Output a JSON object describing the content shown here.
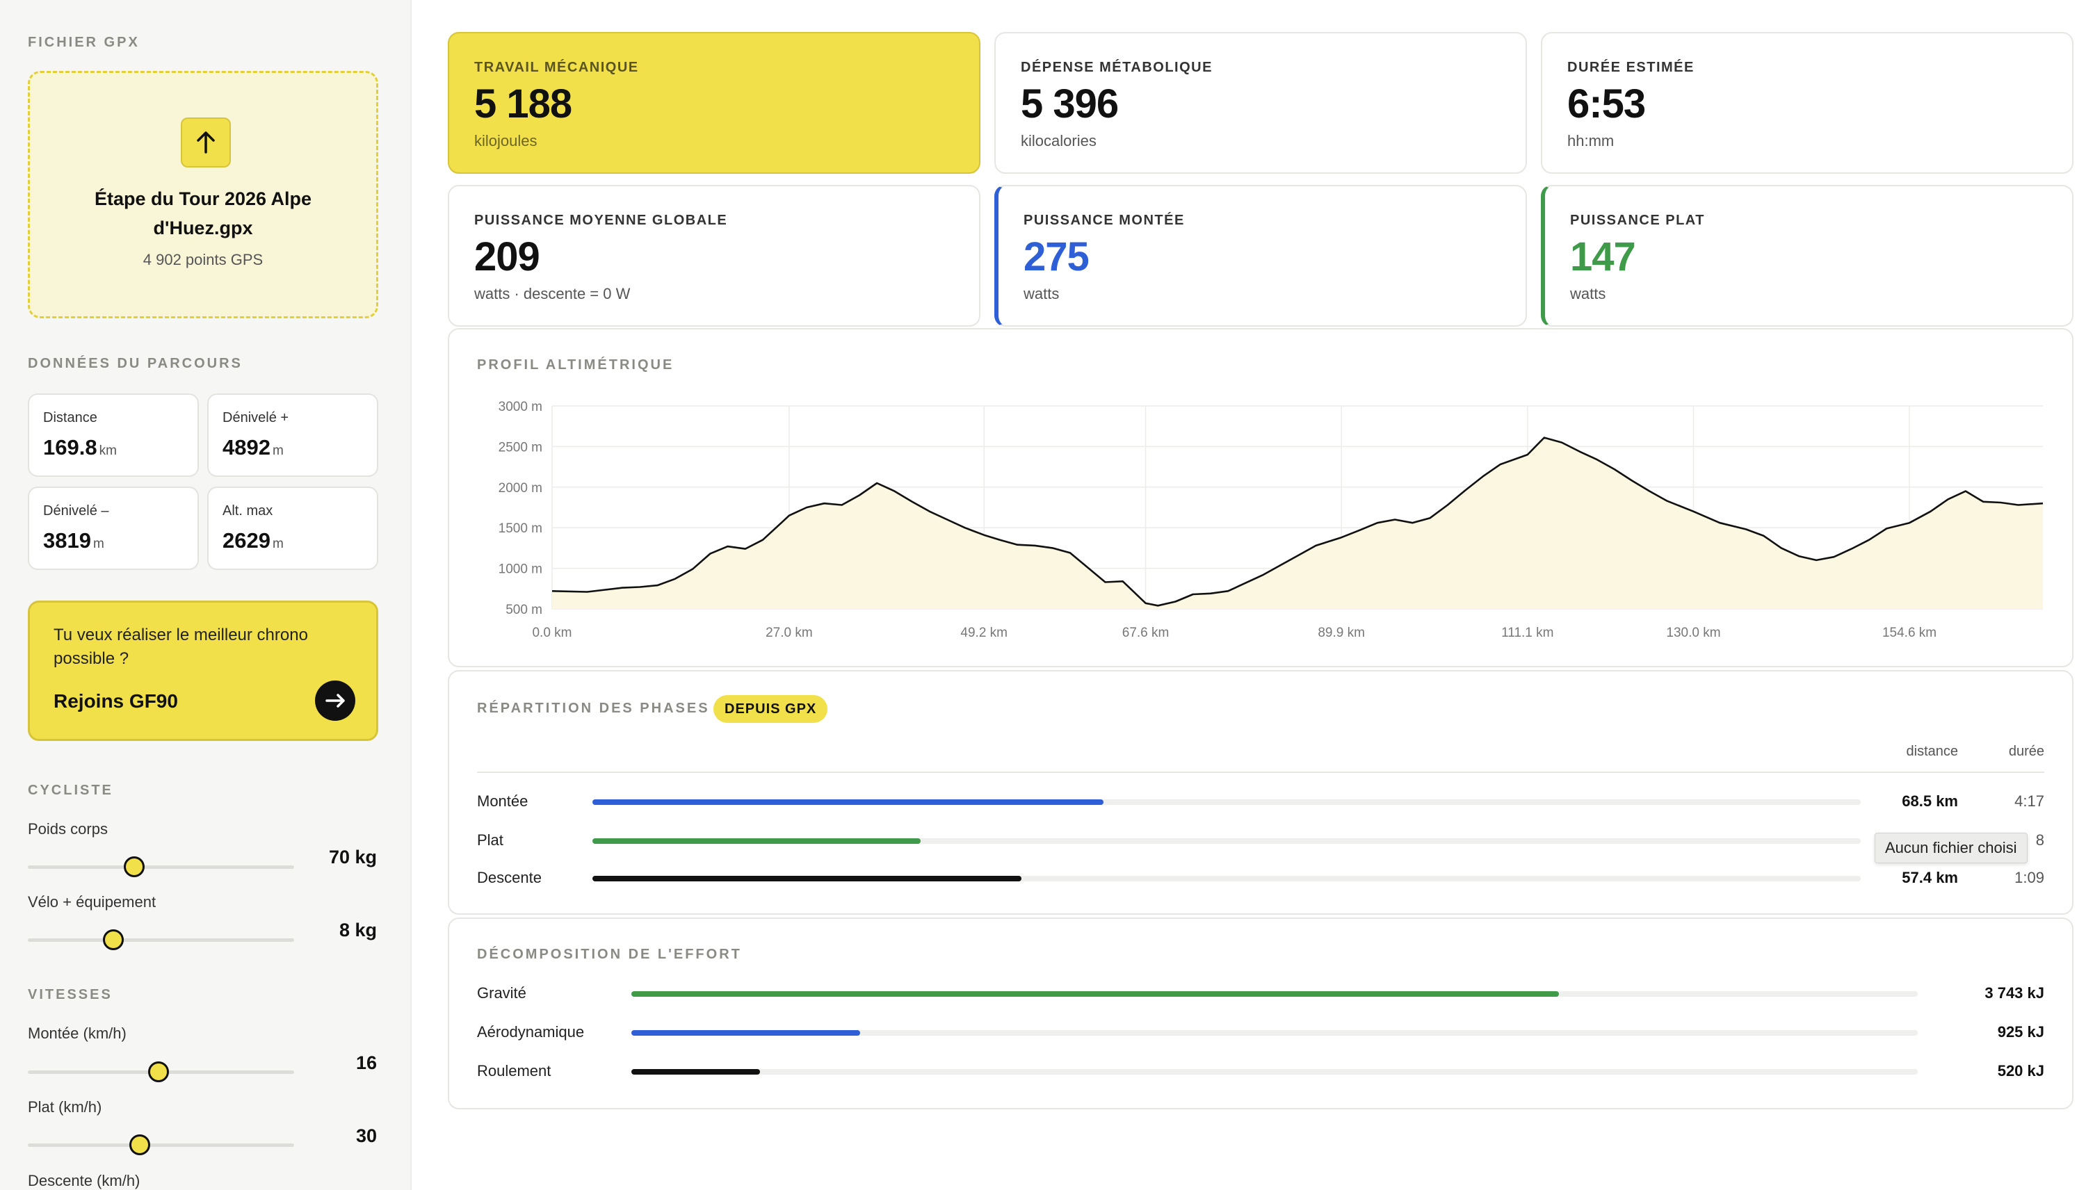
{
  "sidebar": {
    "gpx_section_title": "FICHIER GPX",
    "file_name": "Étape du Tour 2026 Alpe d'Huez.gpx",
    "gps_points": "4 902 points GPS",
    "route_section_title": "DONNÉES DU PARCOURS",
    "stats": [
      {
        "label": "Distance",
        "value": "169.8",
        "unit": "km"
      },
      {
        "label": "Dénivelé +",
        "value": "4892",
        "unit": "m"
      },
      {
        "label": "Dénivelé –",
        "value": "3819",
        "unit": "m"
      },
      {
        "label": "Alt. max",
        "value": "2629",
        "unit": "m"
      }
    ],
    "cta": {
      "text": "Tu veux réaliser le meilleur chrono possible ?",
      "action": "Rejoins GF90"
    },
    "rider_section_title": "CYCLISTE",
    "rider_sliders": [
      {
        "label": "Poids corps",
        "value": "70 kg",
        "fraction": 0.4
      },
      {
        "label": "Vélo + équipement",
        "value": "8 kg",
        "fraction": 0.32
      }
    ],
    "speed_section_title": "VITESSES",
    "speed_sliders": [
      {
        "label": "Montée (km/h)",
        "value": "16",
        "fraction": 0.49
      },
      {
        "label": "Plat (km/h)",
        "value": "30",
        "fraction": 0.42
      },
      {
        "label": "Descente (km/h)",
        "value": ""
      }
    ]
  },
  "metrics": [
    {
      "label": "TRAVAIL MÉCANIQUE",
      "value": "5 188",
      "sub": "kilojoules"
    },
    {
      "label": "DÉPENSE MÉTABOLIQUE",
      "value": "5 396",
      "sub": "kilocalories"
    },
    {
      "label": "DURÉE ESTIMÉE",
      "value": "6:53",
      "sub": "hh:mm"
    },
    {
      "label": "PUISSANCE MOYENNE GLOBALE",
      "value": "209",
      "sub": "watts · descente = 0 W"
    },
    {
      "label": "PUISSANCE MONTÉE",
      "value": "275",
      "sub": "watts"
    },
    {
      "label": "PUISSANCE PLAT",
      "value": "147",
      "sub": "watts"
    }
  ],
  "colors": {
    "accent_yellow": "#f2e04a",
    "climb_blue": "#2f5fd6",
    "flat_green": "#3f9a4a",
    "descent_black": "#111111"
  },
  "profile_title": "PROFIL ALTIMÉTRIQUE",
  "chart_data": {
    "type": "area",
    "title": "PROFIL ALTIMÉTRIQUE",
    "y_ticks": [
      "3000 m",
      "2500 m",
      "2000 m",
      "1500 m",
      "1000 m",
      "500 m"
    ],
    "x_ticks": [
      "0.0 km",
      "27.0 km",
      "49.2 km",
      "67.6 km",
      "89.9 km",
      "111.1 km",
      "130.0 km",
      "154.6 km"
    ],
    "ylim": [
      500,
      3000
    ],
    "xlim": [
      0,
      169.8
    ],
    "x": [
      0,
      4,
      8,
      10,
      12,
      14,
      16,
      18,
      20,
      22,
      24,
      26,
      27,
      29,
      31,
      33,
      35,
      37,
      39,
      41,
      43,
      45,
      47,
      49.2,
      51,
      53,
      55,
      57,
      59,
      61,
      63,
      65,
      67.6,
      69,
      71,
      73,
      75,
      77,
      79,
      81,
      83,
      85,
      87,
      89.9,
      92,
      94,
      96,
      98,
      100,
      102,
      104,
      106,
      108,
      111.1,
      113,
      115,
      117,
      119,
      121,
      123,
      125,
      127,
      130,
      133,
      136,
      138,
      140,
      142,
      144,
      146,
      148,
      150,
      152,
      154.6,
      157,
      159,
      161,
      163,
      165,
      167,
      169.8
    ],
    "y": [
      720,
      710,
      760,
      770,
      790,
      870,
      990,
      1180,
      1270,
      1240,
      1350,
      1550,
      1650,
      1750,
      1800,
      1780,
      1900,
      2050,
      1950,
      1820,
      1700,
      1600,
      1500,
      1410,
      1350,
      1290,
      1280,
      1250,
      1190,
      1010,
      830,
      840,
      570,
      540,
      590,
      680,
      690,
      720,
      820,
      920,
      1040,
      1160,
      1280,
      1380,
      1470,
      1560,
      1600,
      1560,
      1620,
      1780,
      1960,
      2130,
      2280,
      2400,
      2610,
      2550,
      2440,
      2340,
      2220,
      2080,
      1950,
      1830,
      1700,
      1560,
      1480,
      1400,
      1250,
      1150,
      1100,
      1140,
      1240,
      1350,
      1490,
      1560,
      1700,
      1850,
      1950,
      1820,
      1810,
      1780,
      1800
    ],
    "series": [
      {
        "name": "",
        "color": "#111111",
        "fill": "#fbf7e1"
      }
    ],
    "grid": true
  },
  "phases": {
    "title": "RÉPARTITION DES PHASES",
    "badge": "DEPUIS GPX",
    "col_distance": "distance",
    "col_duree": "durée",
    "rows": [
      {
        "label": "Montée",
        "fraction": 0.403,
        "distance": "68.5 km",
        "duree": "4:17",
        "color": "#2f5fd6"
      },
      {
        "label": "Plat",
        "fraction": 0.259,
        "distance": "",
        "duree": "8",
        "color": "#3f9a4a"
      },
      {
        "label": "Descente",
        "fraction": 0.338,
        "distance": "57.4 km",
        "duree": "1:09",
        "color": "#111111"
      }
    ],
    "tooltip": "Aucun fichier choisi"
  },
  "effort": {
    "title": "DÉCOMPOSITION DE L'EFFORT",
    "rows": [
      {
        "label": "Gravité",
        "fraction": 0.721,
        "value": "3 743 kJ",
        "color": "#3f9a4a"
      },
      {
        "label": "Aérodynamique",
        "fraction": 0.178,
        "value": "925 kJ",
        "color": "#2f5fd6"
      },
      {
        "label": "Roulement",
        "fraction": 0.1,
        "value": "520 kJ",
        "color": "#111111"
      }
    ]
  }
}
